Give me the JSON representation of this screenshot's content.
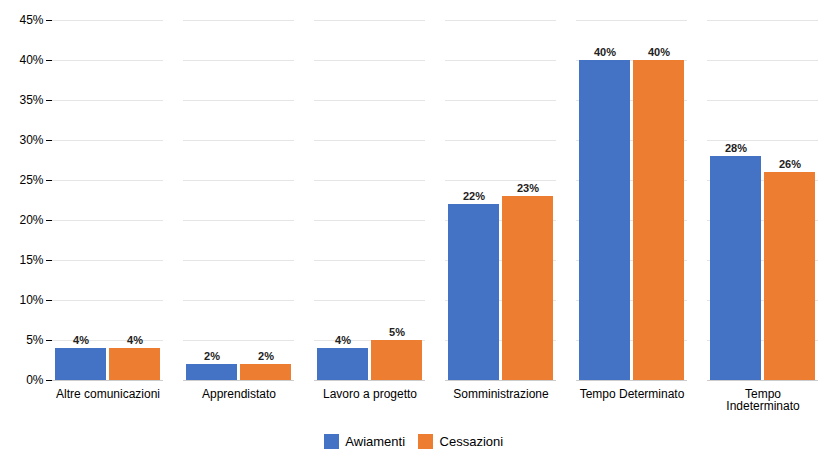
{
  "chart_data": {
    "type": "bar",
    "categories": [
      "Altre comunicazioni",
      "Apprendistato",
      "Lavoro a progetto",
      "Somministrazione",
      "Tempo Determinato",
      "Tempo\nIndeterminato"
    ],
    "series": [
      {
        "name": "Awiamenti",
        "color": "#4472C4",
        "values": [
          4,
          2,
          4,
          22,
          40,
          28
        ],
        "value_labels": [
          "4%",
          "2%",
          "4%",
          "22%",
          "40%",
          "28%"
        ]
      },
      {
        "name": "Cessazioni",
        "color": "#ED7D31",
        "values": [
          4,
          2,
          5,
          23,
          40,
          26
        ],
        "value_labels": [
          "4%",
          "2%",
          "5%",
          "23%",
          "40%",
          "26%"
        ]
      }
    ],
    "ylim": [
      0,
      45
    ],
    "yticks": [
      {
        "value": 0,
        "label": "0%"
      },
      {
        "value": 5,
        "label": "5%"
      },
      {
        "value": 10,
        "label": "10%"
      },
      {
        "value": 15,
        "label": "15%"
      },
      {
        "value": 20,
        "label": "20%"
      },
      {
        "value": 25,
        "label": "25%"
      },
      {
        "value": 30,
        "label": "30%"
      },
      {
        "value": 35,
        "label": "35%"
      },
      {
        "value": 40,
        "label": "40%"
      },
      {
        "value": 45,
        "label": "45%"
      }
    ],
    "grid": true,
    "data_labels": true,
    "legend": "bottom"
  }
}
